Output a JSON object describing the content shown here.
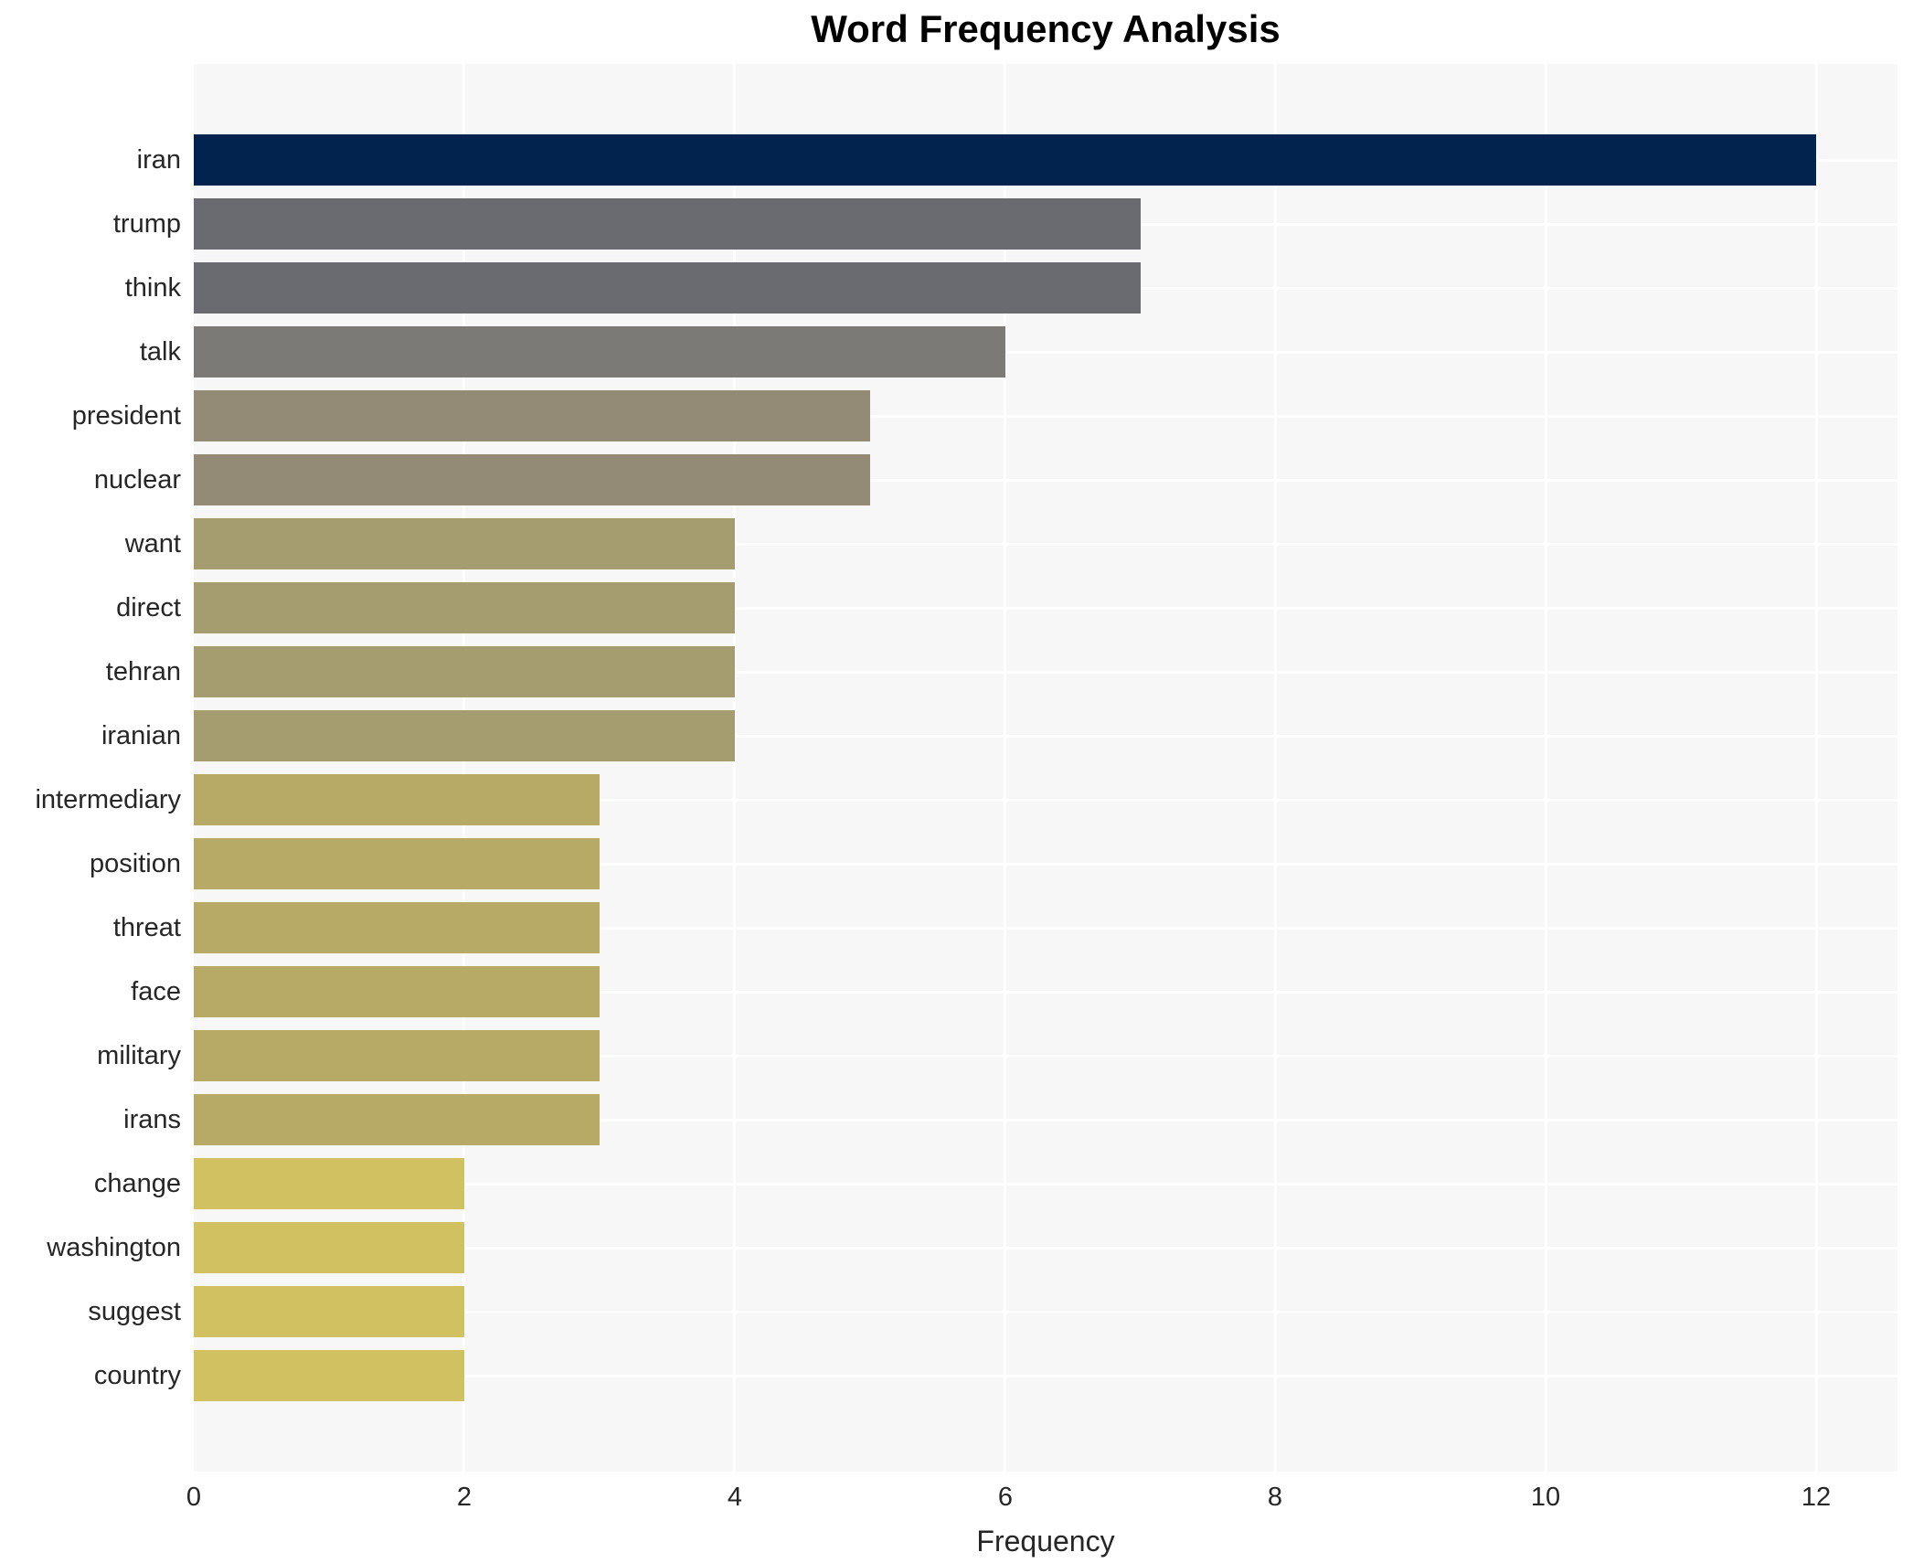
{
  "chart_data": {
    "type": "bar",
    "orientation": "horizontal",
    "title": "Word Frequency Analysis",
    "xlabel": "Frequency",
    "ylabel": "",
    "categories": [
      "iran",
      "trump",
      "think",
      "talk",
      "president",
      "nuclear",
      "want",
      "direct",
      "tehran",
      "iranian",
      "intermediary",
      "position",
      "threat",
      "face",
      "military",
      "irans",
      "change",
      "washington",
      "suggest",
      "country"
    ],
    "values": [
      12,
      7,
      7,
      6,
      5,
      5,
      4,
      4,
      4,
      4,
      3,
      3,
      3,
      3,
      3,
      3,
      2,
      2,
      2,
      2
    ],
    "bar_colors": [
      "#02234d",
      "#6a6b70",
      "#6a6b70",
      "#7b7a77",
      "#948b77",
      "#948b77",
      "#a59c70",
      "#a59c70",
      "#a59c70",
      "#a59c70",
      "#b7aa66",
      "#b7aa66",
      "#b7aa66",
      "#b7aa66",
      "#b7aa66",
      "#b7aa66",
      "#d2c161",
      "#d2c161",
      "#d2c161",
      "#d2c161"
    ],
    "xticks": [
      0,
      2,
      4,
      6,
      8,
      10,
      12
    ],
    "xlim": [
      0,
      12.6
    ],
    "grid": true,
    "legend": false,
    "plot_background": "#f7f7f7",
    "grid_color": "#ffffff",
    "tick_label_color": "#262626",
    "title_color": "#000000"
  }
}
